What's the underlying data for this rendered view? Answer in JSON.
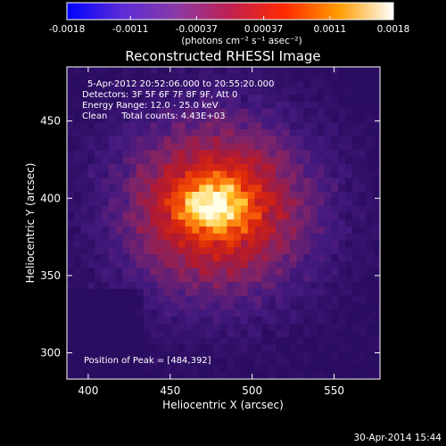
{
  "chart_data": {
    "type": "heatmap",
    "title": "Reconstructed RHESSI Image",
    "xlabel": "Heliocentric X (arcsec)",
    "ylabel": "Heliocentric Y (arcsec)",
    "xlim": [
      387,
      578
    ],
    "ylim": [
      283,
      485
    ],
    "x_ticks": [
      400,
      450,
      500,
      550
    ],
    "y_ticks": [
      300,
      350,
      400,
      450
    ],
    "colorbar": {
      "range": [
        -0.0018,
        0.0018
      ],
      "tick_values": [
        -0.0018,
        -0.0011,
        -0.00037,
        0.00037,
        0.0011,
        0.0018
      ],
      "tick_labels": [
        "-0.0018",
        "-0.0011",
        "-0.00037",
        "0.00037",
        "0.0011",
        "0.0018"
      ],
      "unit_label": "(photons cm⁻² s⁻¹ asec⁻²)",
      "colors": [
        "#0000ff",
        "#5a2bd6",
        "#8a3aa8",
        "#c02050",
        "#ff2a00",
        "#ff9d00",
        "#ffffff"
      ]
    },
    "annotations": [
      "5-Apr-2012 20:52:06.000 to 20:55:20.000",
      "Detectors: 3F 5F 6F 7F 8F 9F, Att 0",
      "Energy Range: 12.0 - 25.0 keV",
      "Clean     Total counts: 4.43E+03"
    ],
    "peak_label": "Position of Peak = [484,392]",
    "peak": [
      484,
      392
    ],
    "grid": false,
    "legend": "none"
  },
  "footer": {
    "date": "30-Apr-2014 15:44"
  }
}
